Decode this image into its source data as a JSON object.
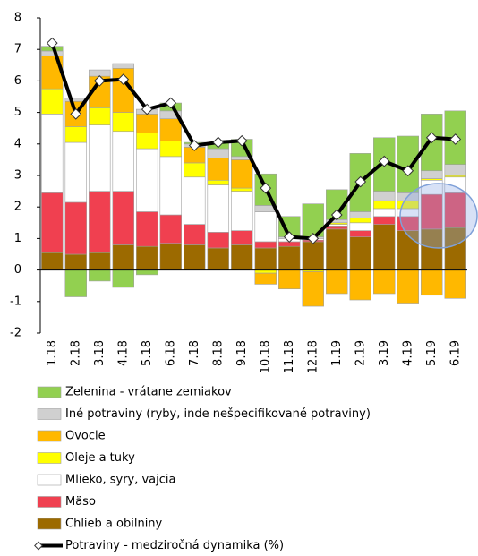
{
  "chart_data": {
    "type": "bar",
    "categories": [
      "1.18",
      "2.18",
      "3.18",
      "4.18",
      "5.18",
      "6.18",
      "7.18",
      "8.18",
      "9.18",
      "10.18",
      "11.18",
      "12.18",
      "1.19",
      "2.19",
      "3.19",
      "4.19",
      "5.19",
      "6.19"
    ],
    "stacked": true,
    "series": [
      {
        "name": "Zelenina - vrátane zemiakov",
        "color": "#92d050",
        "values": [
          0.15,
          -0.85,
          -0.35,
          -0.55,
          -0.15,
          0.25,
          0.05,
          0.2,
          0.55,
          1.0,
          0.65,
          1.05,
          0.95,
          1.85,
          1.7,
          1.8,
          1.8,
          1.7
        ]
      },
      {
        "name": "Iné potraviny (ryby, inde nešpecifikované potraviny)",
        "color": "#d0d0d0",
        "values": [
          0.15,
          0.1,
          0.2,
          0.15,
          0.15,
          0.25,
          0.1,
          0.3,
          0.1,
          0.2,
          0.05,
          0.05,
          0.1,
          0.2,
          0.3,
          0.25,
          0.25,
          0.35
        ]
      },
      {
        "name": "Ovocie",
        "color": "#ffb800",
        "values": [
          1.05,
          0.8,
          1.0,
          1.4,
          0.6,
          0.7,
          0.5,
          0.7,
          0.9,
          -0.35,
          -0.6,
          -1.1,
          -0.75,
          -0.95,
          -0.75,
          -1.05,
          -0.8,
          -0.9
        ]
      },
      {
        "name": "Oleje a tuky",
        "color": "#ffff00",
        "values": [
          0.8,
          0.5,
          0.55,
          0.6,
          0.5,
          0.5,
          0.45,
          0.15,
          0.1,
          -0.1,
          0,
          -0.05,
          0.05,
          0.15,
          0.25,
          0.25,
          0.05,
          0.05
        ]
      },
      {
        "name": "Mlieko, syry, vajcia",
        "color": "#ffffff",
        "values": [
          2.5,
          1.9,
          2.1,
          1.9,
          2.0,
          1.85,
          1.5,
          1.5,
          1.25,
          0.95,
          0.1,
          0.05,
          0.05,
          0.25,
          0.25,
          0.25,
          0.45,
          0.5
        ]
      },
      {
        "name": "Mäso",
        "color": "#f04050",
        "values": [
          1.9,
          1.65,
          1.95,
          1.7,
          1.1,
          0.9,
          0.65,
          0.5,
          0.45,
          0.2,
          0.15,
          0.05,
          0.1,
          0.2,
          0.25,
          0.45,
          1.1,
          1.1
        ]
      },
      {
        "name": "Chlieb a obilniny",
        "color": "#9c6a00",
        "values": [
          0.55,
          0.5,
          0.55,
          0.8,
          0.75,
          0.85,
          0.8,
          0.7,
          0.8,
          0.7,
          0.75,
          0.9,
          1.3,
          1.05,
          1.45,
          1.25,
          1.3,
          1.35
        ]
      },
      {
        "name": "Potraviny - medziročná dynamika (%)",
        "type": "line",
        "color": "#000000",
        "values": [
          7.2,
          4.95,
          6.0,
          6.05,
          5.1,
          5.3,
          3.95,
          4.05,
          4.1,
          2.6,
          1.05,
          1.0,
          1.75,
          2.8,
          3.45,
          3.15,
          4.2,
          4.15
        ]
      }
    ],
    "ylim": [
      -2,
      8
    ],
    "yticks": [
      -2,
      -1,
      0,
      1,
      2,
      3,
      4,
      5,
      6,
      7,
      8
    ],
    "legend": "bottom"
  }
}
